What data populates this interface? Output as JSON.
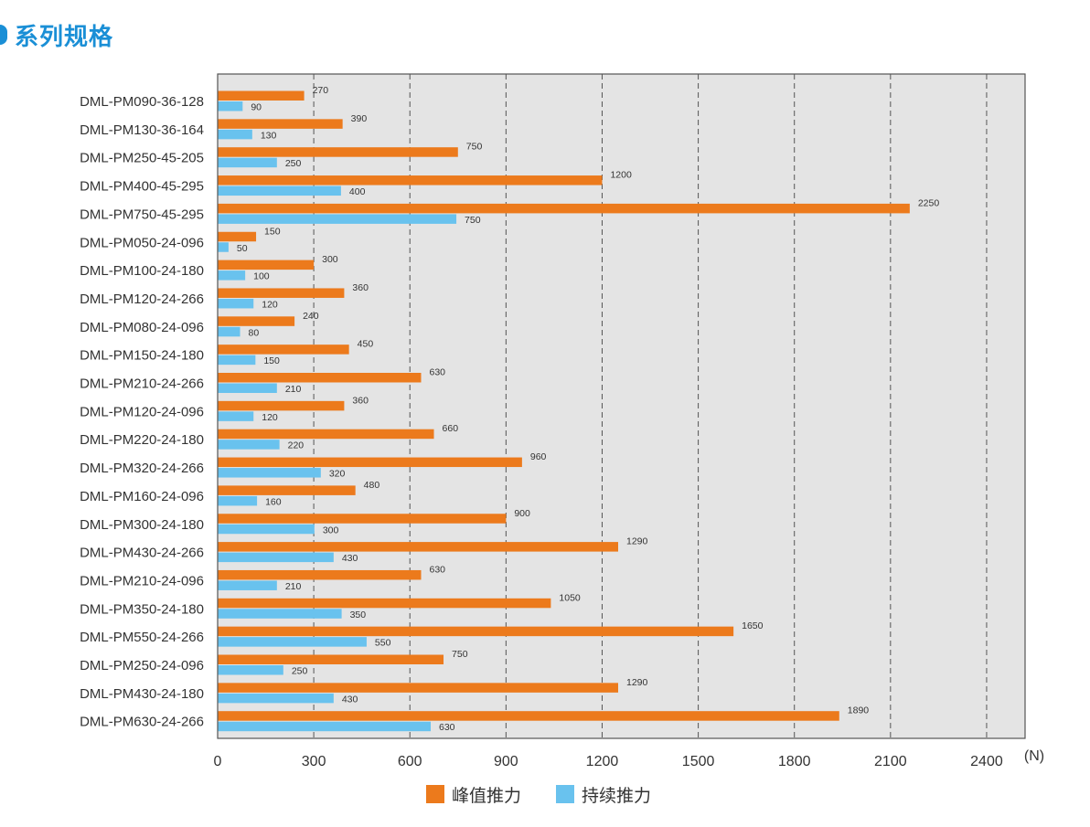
{
  "page": {
    "title": "系列规格",
    "accent_color": "#1a8fd6"
  },
  "chart_data": {
    "type": "bar",
    "orientation": "horizontal",
    "title": "",
    "unit": "(N)",
    "xlim": [
      0,
      2520
    ],
    "xticks": [
      0,
      300,
      600,
      900,
      1200,
      1500,
      1800,
      2100,
      2400
    ],
    "grid": "dashed vertical",
    "legend_placement": "bottom-center",
    "plot_background": "#e4e4e4",
    "categories": [
      "DML-PM090-36-128",
      "DML-PM130-36-164",
      "DML-PM250-45-205",
      "DML-PM400-45-295",
      "DML-PM750-45-295",
      "DML-PM050-24-096",
      "DML-PM100-24-180",
      "DML-PM120-24-266",
      "DML-PM080-24-096",
      "DML-PM150-24-180",
      "DML-PM210-24-266",
      "DML-PM120-24-096",
      "DML-PM220-24-180",
      "DML-PM320-24-266",
      "DML-PM160-24-096",
      "DML-PM300-24-180",
      "DML-PM430-24-266",
      "DML-PM210-24-096",
      "DML-PM350-24-180",
      "DML-PM550-24-266",
      "DML-PM250-24-096",
      "DML-PM430-24-180",
      "DML-PM630-24-266"
    ],
    "series": [
      {
        "name": "峰值推力",
        "color": "#ec7a1c",
        "values": [
          270,
          390,
          750,
          1200,
          2250,
          150,
          300,
          360,
          240,
          450,
          630,
          360,
          660,
          960,
          480,
          900,
          1290,
          630,
          1050,
          1650,
          750,
          1290,
          1890
        ],
        "bar_values": [
          270,
          390,
          750,
          1200,
          2160,
          120,
          300,
          395,
          240,
          410,
          635,
          395,
          675,
          950,
          430,
          900,
          1250,
          635,
          1040,
          1610,
          705,
          1250,
          1940
        ]
      },
      {
        "name": "持续推力",
        "color": "#69c2ee",
        "values": [
          90,
          130,
          250,
          400,
          750,
          50,
          100,
          120,
          80,
          150,
          210,
          120,
          220,
          320,
          160,
          300,
          430,
          210,
          350,
          550,
          250,
          430,
          630
        ],
        "bar_values": [
          78,
          108,
          185,
          385,
          745,
          34,
          86,
          112,
          70,
          118,
          185,
          112,
          193,
          322,
          123,
          302,
          362,
          185,
          387,
          465,
          205,
          362,
          665
        ]
      }
    ]
  }
}
